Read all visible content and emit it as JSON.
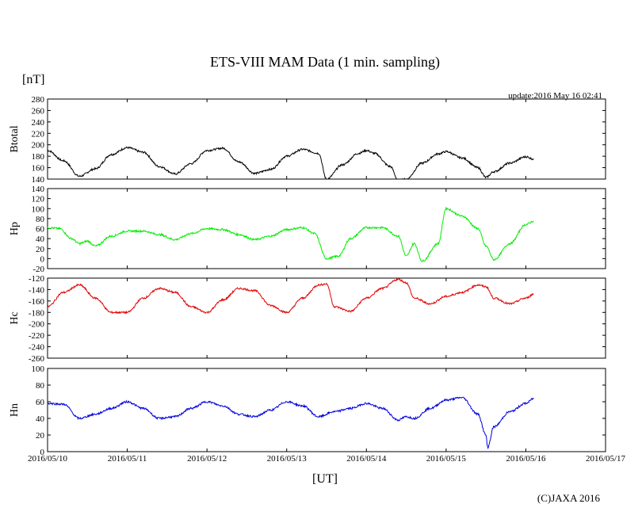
{
  "header": {
    "title": "ETS-VIII MAM Data (1 min. sampling)",
    "unit_label": "[nT]",
    "update_text": "update:2016 May 16 02:41"
  },
  "footer": {
    "xlabel": "[UT]",
    "copyright": "(C)JAXA 2016"
  },
  "chart_data": [
    {
      "type": "line",
      "ylabel": "Btotal",
      "ylim": [
        140,
        280
      ],
      "yticks": [
        "280",
        "260",
        "240",
        "220",
        "200",
        "180",
        "160",
        "140"
      ],
      "color": "#000000",
      "x": [
        0.0,
        0.2,
        0.4,
        0.6,
        0.8,
        1.0,
        1.2,
        1.4,
        1.6,
        1.8,
        2.0,
        2.2,
        2.4,
        2.6,
        2.8,
        3.0,
        3.2,
        3.4,
        3.5,
        3.7,
        3.9,
        4.0,
        4.1,
        4.3,
        4.4,
        4.5,
        4.7,
        4.9,
        5.0,
        5.2,
        5.4,
        5.5,
        5.6,
        5.8,
        6.0,
        6.1
      ],
      "values": [
        190,
        172,
        145,
        158,
        183,
        195,
        187,
        162,
        149,
        167,
        190,
        194,
        170,
        150,
        157,
        180,
        192,
        185,
        140,
        165,
        185,
        190,
        185,
        162,
        138,
        140,
        168,
        184,
        188,
        177,
        160,
        143,
        153,
        168,
        179,
        175
      ]
    },
    {
      "type": "line",
      "ylabel": "Hp",
      "ylim": [
        -20,
        140
      ],
      "yticks": [
        "140",
        "120",
        "100",
        "80",
        "60",
        "40",
        "20",
        "0",
        "-20"
      ],
      "color": "#00ee00",
      "x": [
        0.0,
        0.15,
        0.3,
        0.4,
        0.5,
        0.6,
        0.8,
        1.0,
        1.2,
        1.4,
        1.6,
        1.8,
        2.0,
        2.2,
        2.4,
        2.6,
        2.8,
        3.0,
        3.2,
        3.35,
        3.5,
        3.65,
        3.8,
        4.0,
        4.2,
        4.4,
        4.5,
        4.6,
        4.7,
        4.9,
        5.0,
        5.2,
        5.4,
        5.5,
        5.6,
        5.8,
        6.0,
        6.1
      ],
      "values": [
        62,
        60,
        40,
        30,
        35,
        25,
        45,
        55,
        55,
        48,
        38,
        50,
        60,
        58,
        48,
        38,
        45,
        58,
        62,
        50,
        0,
        5,
        40,
        62,
        62,
        45,
        5,
        30,
        -5,
        30,
        100,
        85,
        60,
        25,
        -2,
        30,
        68,
        75
      ]
    },
    {
      "type": "line",
      "ylabel": "Hc",
      "ylim": [
        -260,
        -120
      ],
      "yticks": [
        "-120",
        "-140",
        "-160",
        "-180",
        "-200",
        "-220",
        "-240",
        "-260"
      ],
      "color": "#e00000",
      "x": [
        0.0,
        0.2,
        0.4,
        0.6,
        0.8,
        1.0,
        1.2,
        1.4,
        1.6,
        1.8,
        2.0,
        2.2,
        2.4,
        2.6,
        2.8,
        3.0,
        3.2,
        3.4,
        3.5,
        3.6,
        3.8,
        4.0,
        4.2,
        4.4,
        4.5,
        4.6,
        4.8,
        5.0,
        5.2,
        5.4,
        5.5,
        5.6,
        5.8,
        6.0,
        6.1
      ],
      "values": [
        -170,
        -145,
        -132,
        -155,
        -180,
        -180,
        -155,
        -138,
        -145,
        -170,
        -180,
        -158,
        -138,
        -142,
        -168,
        -180,
        -155,
        -132,
        -130,
        -170,
        -178,
        -155,
        -138,
        -122,
        -128,
        -155,
        -165,
        -152,
        -145,
        -132,
        -135,
        -155,
        -165,
        -155,
        -148
      ]
    },
    {
      "type": "line",
      "ylabel": "Hn",
      "ylim": [
        0,
        100
      ],
      "yticks": [
        "100",
        "80",
        "60",
        "40",
        "20",
        "0"
      ],
      "color": "#0000dd",
      "x": [
        0.0,
        0.2,
        0.4,
        0.6,
        0.8,
        1.0,
        1.2,
        1.4,
        1.6,
        1.8,
        2.0,
        2.2,
        2.4,
        2.6,
        2.8,
        3.0,
        3.2,
        3.4,
        3.6,
        3.8,
        4.0,
        4.2,
        4.4,
        4.5,
        4.6,
        4.8,
        5.0,
        5.2,
        5.4,
        5.5,
        5.52,
        5.6,
        5.8,
        6.0,
        6.1
      ],
      "values": [
        58,
        57,
        40,
        45,
        52,
        60,
        52,
        40,
        42,
        52,
        60,
        55,
        45,
        42,
        50,
        60,
        55,
        42,
        48,
        52,
        58,
        52,
        38,
        42,
        40,
        52,
        62,
        65,
        45,
        20,
        5,
        30,
        48,
        58,
        64
      ]
    }
  ],
  "x_axis": {
    "tick_labels": [
      "2016/05/10",
      "2016/05/11",
      "2016/05/12",
      "2016/05/13",
      "2016/05/14",
      "2016/05/15",
      "2016/05/16",
      "2016/05/17"
    ],
    "xlim": [
      0,
      7
    ],
    "grid": false
  }
}
